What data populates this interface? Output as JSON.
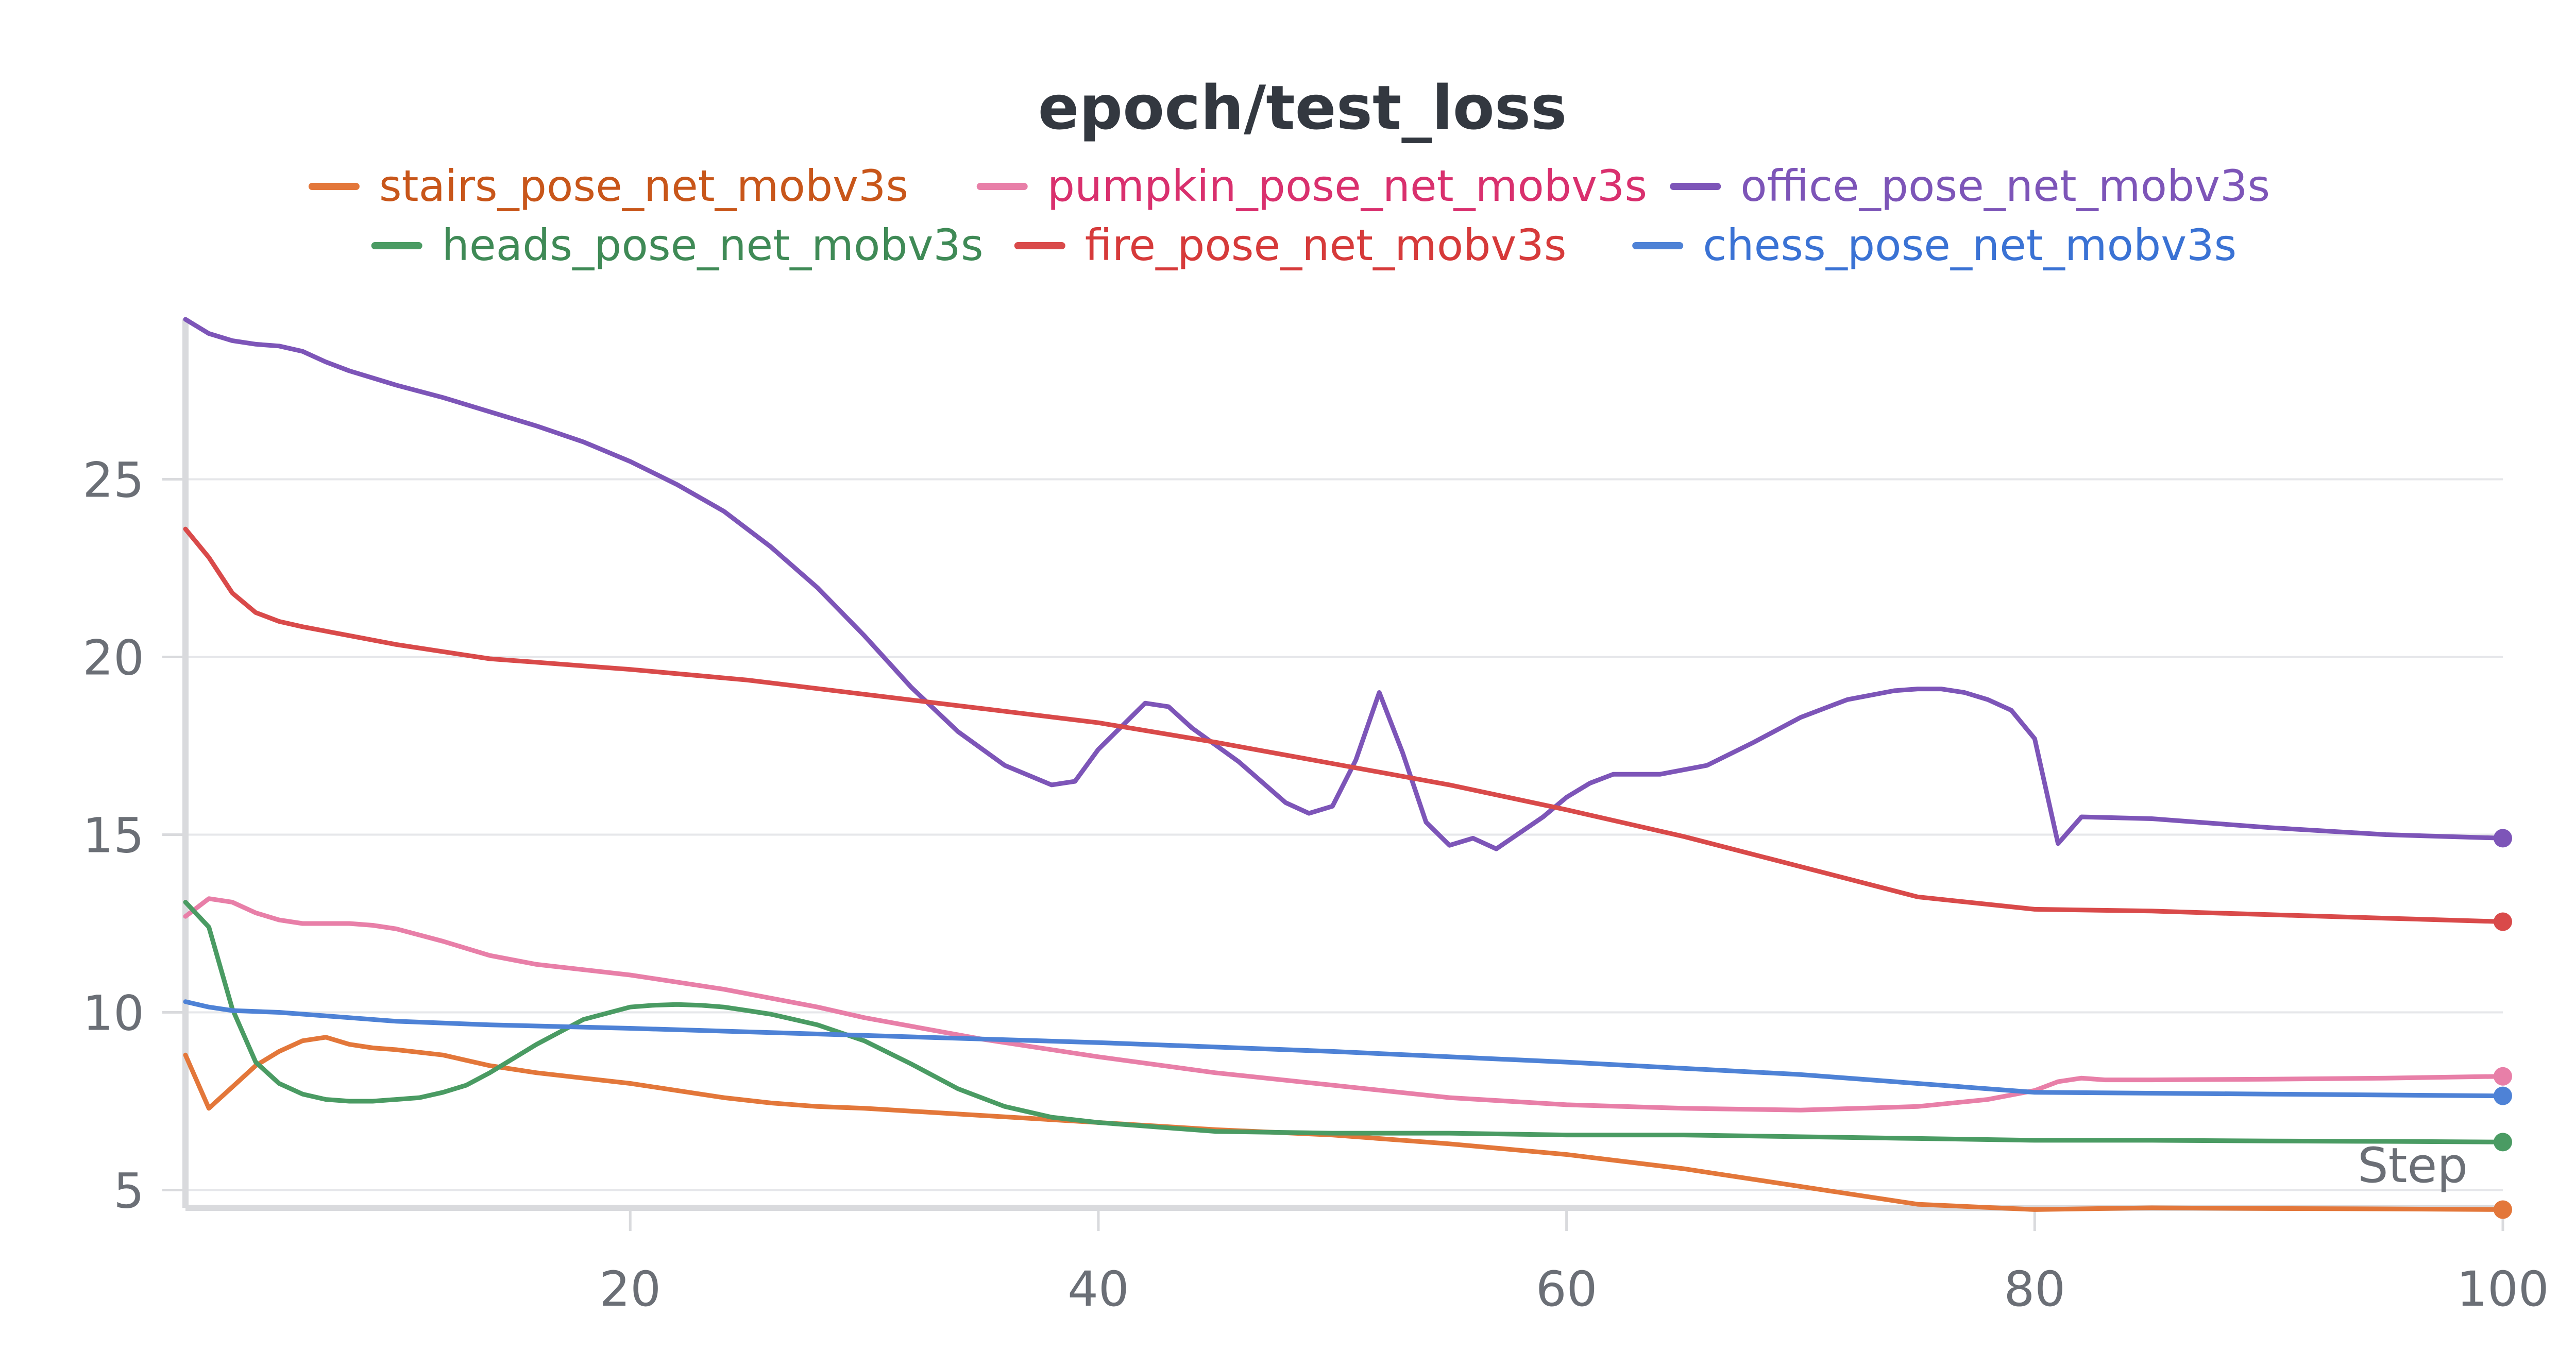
{
  "chart_data": {
    "type": "line",
    "title": "epoch/test_loss",
    "xlabel": "Step",
    "ylabel": "",
    "xlim": [
      1,
      100
    ],
    "ylim": [
      4.5,
      29.5
    ],
    "xticks": [
      20,
      40,
      60,
      80,
      100
    ],
    "xtick_labels": [
      "20",
      "40",
      "60",
      "80",
      "100"
    ],
    "yticks": [
      5,
      10,
      15,
      20,
      25
    ],
    "ytick_labels": [
      "5",
      "10",
      "15",
      "20",
      "25"
    ],
    "grid": "horizontal",
    "legend_position": "top-center",
    "series": [
      {
        "name": "stairs_pose_net_mobv3s",
        "color": "#e3773a",
        "text_color": "#c8561a",
        "x": [
          1,
          2,
          3,
          4,
          5,
          6,
          7,
          8,
          9,
          10,
          12,
          14,
          16,
          18,
          20,
          22,
          24,
          26,
          28,
          30,
          35,
          40,
          45,
          50,
          55,
          60,
          65,
          70,
          75,
          80,
          85,
          90,
          95,
          100
        ],
        "y": [
          8.8,
          7.3,
          7.9,
          8.5,
          8.9,
          9.2,
          9.3,
          9.1,
          9.0,
          8.95,
          8.8,
          8.5,
          8.3,
          8.15,
          8.0,
          7.8,
          7.6,
          7.45,
          7.35,
          7.3,
          7.1,
          6.9,
          6.7,
          6.55,
          6.3,
          6.0,
          5.6,
          5.1,
          4.6,
          4.45,
          4.5,
          4.48,
          4.47,
          4.45
        ]
      },
      {
        "name": "pumpkin_pose_net_mobv3s",
        "color": "#e87fa8",
        "text_color": "#d9306e",
        "x": [
          1,
          2,
          3,
          4,
          5,
          6,
          7,
          8,
          9,
          10,
          12,
          14,
          16,
          18,
          20,
          22,
          24,
          26,
          28,
          30,
          35,
          40,
          45,
          50,
          55,
          60,
          65,
          70,
          75,
          78,
          80,
          81,
          82,
          83,
          85,
          90,
          95,
          100
        ],
        "y": [
          12.7,
          13.2,
          13.1,
          12.8,
          12.6,
          12.5,
          12.5,
          12.5,
          12.45,
          12.35,
          12.0,
          11.6,
          11.35,
          11.2,
          11.05,
          10.85,
          10.65,
          10.4,
          10.15,
          9.85,
          9.25,
          8.75,
          8.3,
          7.95,
          7.6,
          7.4,
          7.3,
          7.25,
          7.35,
          7.55,
          7.8,
          8.05,
          8.15,
          8.1,
          8.1,
          8.12,
          8.15,
          8.2
        ]
      },
      {
        "name": "office_pose_net_mobv3s",
        "color": "#7d55b8",
        "text_color": "#7d55b8",
        "x": [
          1,
          2,
          3,
          4,
          5,
          6,
          7,
          8,
          9,
          10,
          12,
          14,
          16,
          18,
          20,
          22,
          24,
          26,
          28,
          30,
          32,
          34,
          36,
          38,
          39,
          40,
          42,
          43,
          44,
          46,
          48,
          49,
          50,
          51,
          52,
          53,
          54,
          55,
          56,
          57,
          59,
          60,
          61,
          62,
          64,
          66,
          68,
          70,
          72,
          74,
          75,
          76,
          77,
          78,
          79,
          80,
          81,
          82,
          85,
          90,
          95,
          100
        ],
        "y": [
          29.5,
          29.1,
          28.9,
          28.8,
          28.75,
          28.6,
          28.3,
          28.05,
          27.85,
          27.65,
          27.3,
          26.9,
          26.5,
          26.05,
          25.5,
          24.85,
          24.1,
          23.1,
          21.95,
          20.6,
          19.15,
          17.9,
          16.95,
          16.4,
          16.5,
          17.4,
          18.7,
          18.6,
          18.0,
          17.05,
          15.9,
          15.6,
          15.8,
          17.1,
          19.0,
          17.3,
          15.35,
          14.7,
          14.9,
          14.6,
          15.5,
          16.05,
          16.45,
          16.7,
          16.7,
          16.95,
          17.6,
          18.3,
          18.8,
          19.05,
          19.1,
          19.1,
          19.0,
          18.8,
          18.5,
          17.7,
          14.75,
          15.5,
          15.45,
          15.2,
          15.0,
          14.9
        ]
      },
      {
        "name": "heads_pose_net_mobv3s",
        "color": "#4a9b63",
        "text_color": "#3f8a56",
        "x": [
          1,
          2,
          3,
          4,
          5,
          6,
          7,
          8,
          9,
          10,
          11,
          12,
          13,
          14,
          16,
          18,
          20,
          21,
          22,
          23,
          24,
          25,
          26,
          28,
          30,
          32,
          34,
          36,
          38,
          40,
          45,
          50,
          55,
          60,
          65,
          70,
          75,
          80,
          85,
          90,
          95,
          100
        ],
        "y": [
          13.1,
          12.4,
          10.1,
          8.6,
          8.0,
          7.7,
          7.55,
          7.5,
          7.5,
          7.55,
          7.6,
          7.75,
          7.95,
          8.3,
          9.1,
          9.8,
          10.15,
          10.2,
          10.22,
          10.2,
          10.15,
          10.05,
          9.95,
          9.65,
          9.2,
          8.55,
          7.85,
          7.35,
          7.05,
          6.9,
          6.65,
          6.6,
          6.6,
          6.55,
          6.55,
          6.5,
          6.45,
          6.4,
          6.4,
          6.38,
          6.37,
          6.35
        ]
      },
      {
        "name": "fire_pose_net_mobv3s",
        "color": "#d94a4a",
        "text_color": "#d63a3a",
        "x": [
          1,
          2,
          3,
          4,
          5,
          6,
          8,
          10,
          12,
          14,
          16,
          18,
          20,
          25,
          30,
          35,
          40,
          45,
          50,
          55,
          60,
          65,
          70,
          75,
          80,
          85,
          90,
          95,
          100
        ],
        "y": [
          23.6,
          22.8,
          21.8,
          21.25,
          21.0,
          20.85,
          20.6,
          20.35,
          20.15,
          19.95,
          19.85,
          19.75,
          19.65,
          19.35,
          18.95,
          18.55,
          18.15,
          17.6,
          17.0,
          16.4,
          15.7,
          14.95,
          14.1,
          13.25,
          12.9,
          12.85,
          12.75,
          12.65,
          12.55
        ]
      },
      {
        "name": "chess_pose_net_mobv3s",
        "color": "#4e82d6",
        "text_color": "#3a72d4",
        "x": [
          1,
          2,
          3,
          5,
          8,
          10,
          14,
          20,
          30,
          40,
          50,
          60,
          70,
          80,
          90,
          100
        ],
        "y": [
          10.3,
          10.15,
          10.05,
          10.0,
          9.85,
          9.75,
          9.65,
          9.55,
          9.35,
          9.15,
          8.9,
          8.6,
          8.25,
          7.75,
          7.7,
          7.65
        ]
      }
    ]
  }
}
